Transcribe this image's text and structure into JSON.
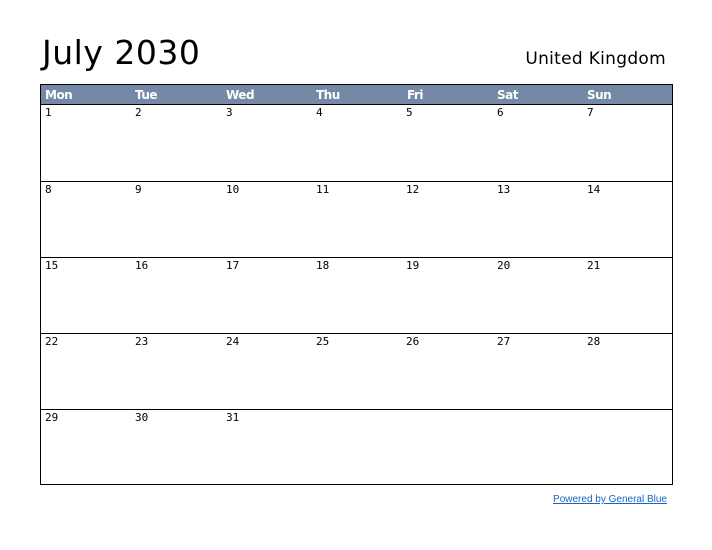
{
  "header": {
    "title": "July 2030",
    "country": "United Kingdom"
  },
  "calendar": {
    "weekdays": [
      "Mon",
      "Tue",
      "Wed",
      "Thu",
      "Fri",
      "Sat",
      "Sun"
    ],
    "weeks": [
      [
        "1",
        "2",
        "3",
        "4",
        "5",
        "6",
        "7"
      ],
      [
        "8",
        "9",
        "10",
        "11",
        "12",
        "13",
        "14"
      ],
      [
        "15",
        "16",
        "17",
        "18",
        "19",
        "20",
        "21"
      ],
      [
        "22",
        "23",
        "24",
        "25",
        "26",
        "27",
        "28"
      ],
      [
        "29",
        "30",
        "31",
        "",
        "",
        "",
        ""
      ]
    ]
  },
  "footer": {
    "link_label": "Powered by General Blue"
  },
  "colors": {
    "header_background": "#7389a6",
    "header_text": "#ffffff",
    "link": "#1565c0",
    "grid_line": "#000000"
  }
}
